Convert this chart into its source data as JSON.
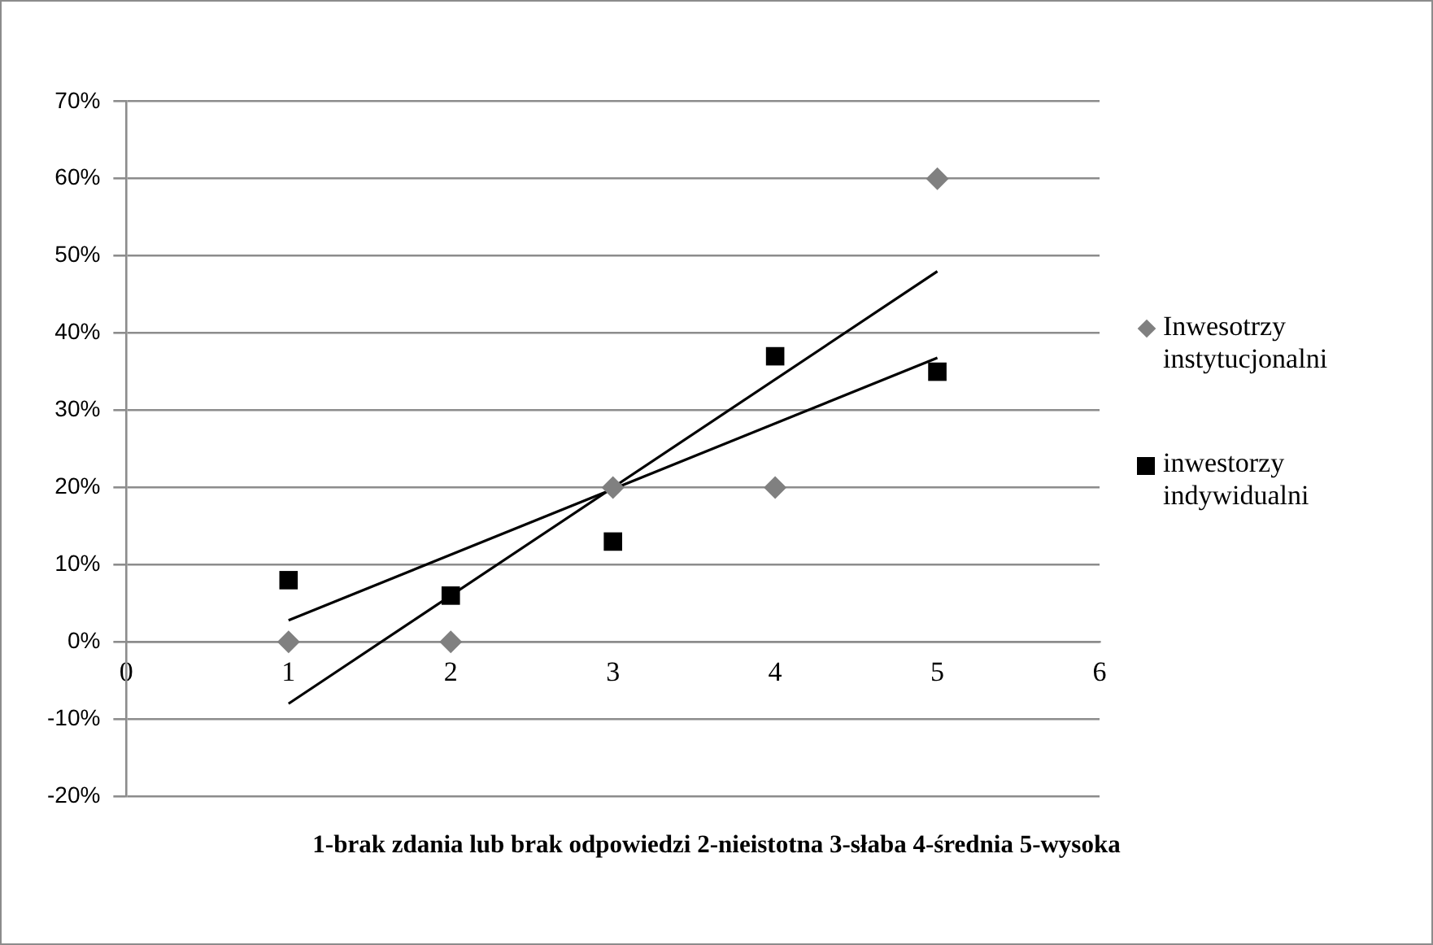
{
  "chart_data": {
    "type": "scatter",
    "xlabel": "1-brak zdania lub brak odpowiedzi 2-nieistotna 3-słaba 4-średnia 5-wysoka",
    "xlim": [
      0,
      6
    ],
    "xticks": [
      0,
      1,
      2,
      3,
      4,
      5,
      6
    ],
    "ylim": [
      -20,
      70
    ],
    "yticks": [
      {
        "value": -20,
        "label": "-20%"
      },
      {
        "value": -10,
        "label": "-10%"
      },
      {
        "value": 0,
        "label": "0%"
      },
      {
        "value": 10,
        "label": "10%"
      },
      {
        "value": 20,
        "label": "20%"
      },
      {
        "value": 30,
        "label": "30%"
      },
      {
        "value": 40,
        "label": "40%"
      },
      {
        "value": 50,
        "label": "50%"
      },
      {
        "value": 60,
        "label": "60%"
      },
      {
        "value": 70,
        "label": "70%"
      }
    ],
    "grid": "y",
    "legend": "right",
    "series": [
      {
        "name": "Inwesotrzy instytucjonalni",
        "color": "#808080",
        "marker": "diamond",
        "x": [
          1,
          2,
          3,
          4,
          5
        ],
        "values": [
          0,
          0,
          20,
          20,
          60
        ]
      },
      {
        "name": "inwestorzy indywidualni",
        "color": "#000000",
        "marker": "square",
        "x": [
          1,
          2,
          3,
          4,
          5
        ],
        "values": [
          8,
          6,
          13,
          37,
          35
        ]
      },
      {
        "type": "line",
        "color": "#000000",
        "marker": "none",
        "x": [
          1,
          5
        ],
        "values": [
          -8,
          48
        ]
      },
      {
        "type": "line",
        "color": "#000000",
        "marker": "none",
        "x": [
          1,
          5
        ],
        "values": [
          2.8,
          36.8
        ]
      }
    ]
  }
}
